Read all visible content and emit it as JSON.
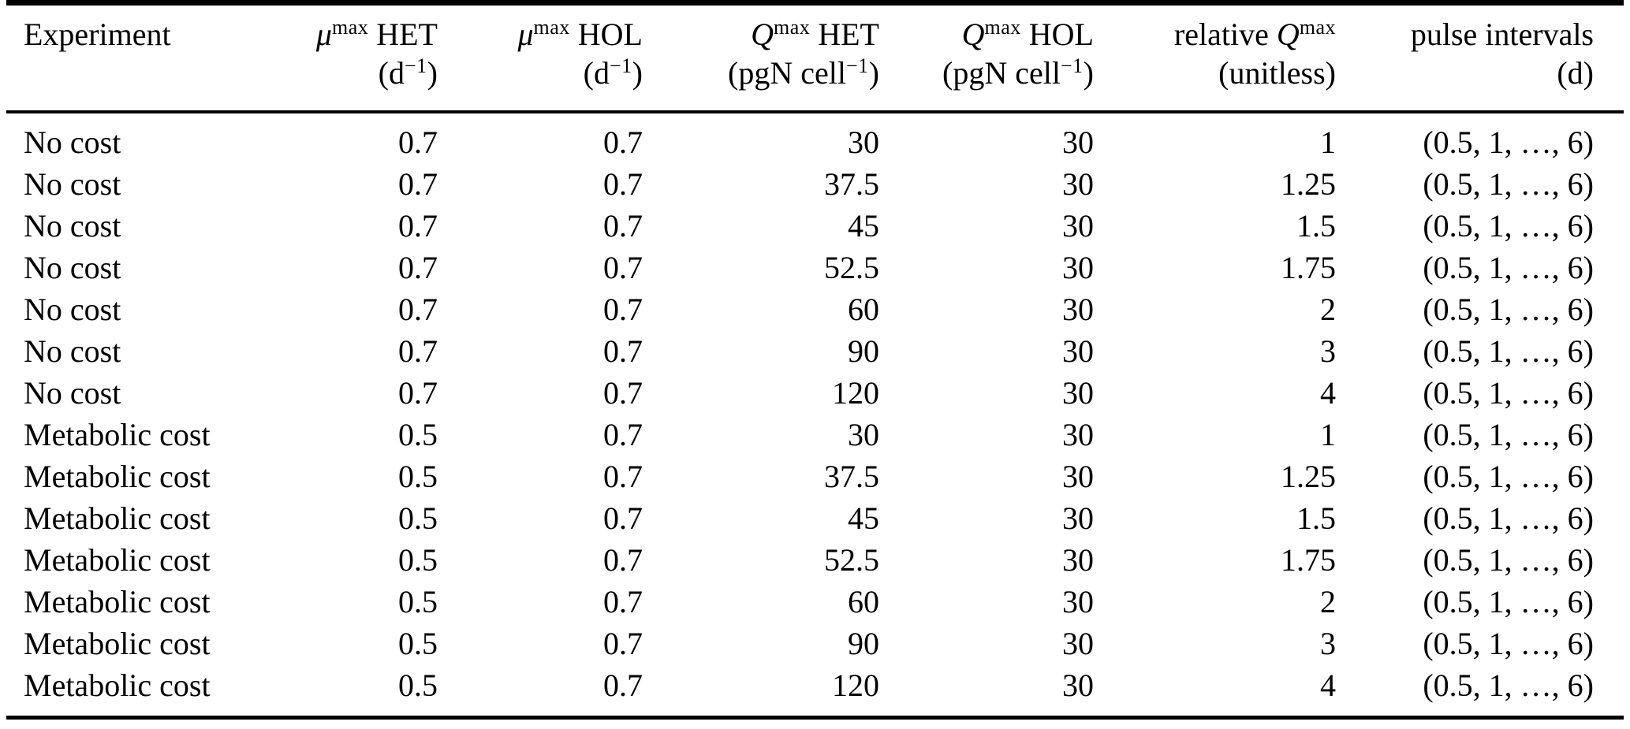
{
  "colors": {
    "background": "#ffffff",
    "text": "#000000",
    "rule": "#000000"
  },
  "table": {
    "columns": [
      {
        "key": "experiment",
        "align": "left",
        "header_pre": "Experiment",
        "header_sym": "",
        "header_sup": "",
        "header_tail": "",
        "unit_pre": "",
        "unit_sup": "",
        "unit_post": ""
      },
      {
        "key": "mu-max-het",
        "align": "right",
        "header_pre": "",
        "header_sym": "μ",
        "header_sup": "max",
        "header_tail": " HET",
        "unit_pre": "(d",
        "unit_sup": "−1",
        "unit_post": ")"
      },
      {
        "key": "mu-max-hol",
        "align": "right",
        "header_pre": "",
        "header_sym": "μ",
        "header_sup": "max",
        "header_tail": " HOL",
        "unit_pre": "(d",
        "unit_sup": "−1",
        "unit_post": ")"
      },
      {
        "key": "q-max-het",
        "align": "right",
        "header_pre": "",
        "header_sym": "Q",
        "header_sup": "max",
        "header_tail": " HET",
        "unit_pre": "(pgN cell",
        "unit_sup": "−1",
        "unit_post": ")"
      },
      {
        "key": "q-max-hol",
        "align": "right",
        "header_pre": "",
        "header_sym": "Q",
        "header_sup": "max",
        "header_tail": " HOL",
        "unit_pre": "(pgN cell",
        "unit_sup": "−1",
        "unit_post": ")"
      },
      {
        "key": "relative-q-max",
        "align": "right",
        "header_pre": "relative ",
        "header_sym": "Q",
        "header_sup": "max",
        "header_tail": "",
        "unit_pre": "(unitless",
        "unit_sup": "",
        "unit_post": ")"
      },
      {
        "key": "pulse-intervals",
        "align": "right",
        "header_pre": "pulse intervals",
        "header_sym": "",
        "header_sup": "",
        "header_tail": "",
        "unit_pre": "(d",
        "unit_sup": "",
        "unit_post": ")"
      }
    ],
    "rows": [
      [
        "No cost",
        "0.7",
        "0.7",
        "30",
        "30",
        "1",
        "(0.5, 1, …, 6)"
      ],
      [
        "No cost",
        "0.7",
        "0.7",
        "37.5",
        "30",
        "1.25",
        "(0.5, 1, …, 6)"
      ],
      [
        "No cost",
        "0.7",
        "0.7",
        "45",
        "30",
        "1.5",
        "(0.5, 1, …, 6)"
      ],
      [
        "No cost",
        "0.7",
        "0.7",
        "52.5",
        "30",
        "1.75",
        "(0.5, 1, …, 6)"
      ],
      [
        "No cost",
        "0.7",
        "0.7",
        "60",
        "30",
        "2",
        "(0.5, 1, …, 6)"
      ],
      [
        "No cost",
        "0.7",
        "0.7",
        "90",
        "30",
        "3",
        "(0.5, 1, …, 6)"
      ],
      [
        "No cost",
        "0.7",
        "0.7",
        "120",
        "30",
        "4",
        "(0.5, 1, …, 6)"
      ],
      [
        "Metabolic cost",
        "0.5",
        "0.7",
        "30",
        "30",
        "1",
        "(0.5, 1, …, 6)"
      ],
      [
        "Metabolic cost",
        "0.5",
        "0.7",
        "37.5",
        "30",
        "1.25",
        "(0.5, 1, …, 6)"
      ],
      [
        "Metabolic cost",
        "0.5",
        "0.7",
        "45",
        "30",
        "1.5",
        "(0.5, 1, …, 6)"
      ],
      [
        "Metabolic cost",
        "0.5",
        "0.7",
        "52.5",
        "30",
        "1.75",
        "(0.5, 1, …, 6)"
      ],
      [
        "Metabolic cost",
        "0.5",
        "0.7",
        "60",
        "30",
        "2",
        "(0.5, 1, …, 6)"
      ],
      [
        "Metabolic cost",
        "0.5",
        "0.7",
        "90",
        "30",
        "3",
        "(0.5, 1, …, 6)"
      ],
      [
        "Metabolic cost",
        "0.5",
        "0.7",
        "120",
        "30",
        "4",
        "(0.5, 1, …, 6)"
      ]
    ]
  }
}
